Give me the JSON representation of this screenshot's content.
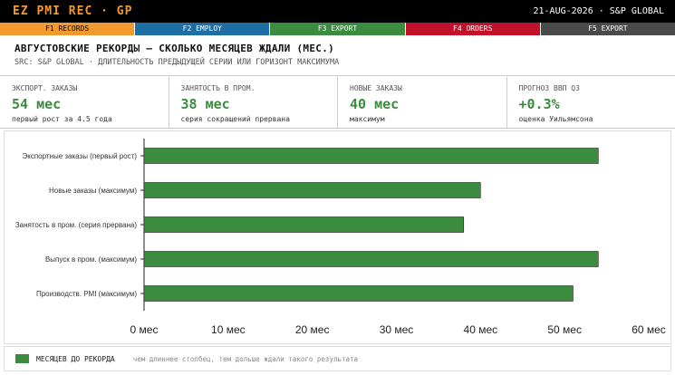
{
  "header": {
    "app_title": "EZ PMI REC · GP",
    "right_text": "21-AUG-2026 · S&P GLOBAL"
  },
  "fkeys": [
    {
      "label": "F1 RECORDS",
      "color": "#f39a2e",
      "text_color": "#000000"
    },
    {
      "label": "F2 EMPLOY",
      "color": "#1c6ea4",
      "text_color": "#ffffff"
    },
    {
      "label": "F3 EXPORT",
      "color": "#3b8c3e",
      "text_color": "#ffffff"
    },
    {
      "label": "F4 ORDERS",
      "color": "#c0102a",
      "text_color": "#ffffff"
    },
    {
      "label": "F5 EXPORT",
      "color": "#4a4a4a",
      "text_color": "#ffffff"
    }
  ],
  "title": "АВГУСТОВСКИЕ РЕКОРДЫ — СКОЛЬКО МЕСЯЦЕВ ЖДАЛИ (МЕС.)",
  "subtitle": "SRC: S&P GLOBAL · ДЛИТЕЛЬНОСТЬ ПРЕДЫДУЩЕЙ СЕРИИ ИЛИ ГОРИЗОНТ МАКСИМУМА",
  "kpis": [
    {
      "label": "ЭКСПОРТ. ЗАКАЗЫ",
      "value": "54 мес",
      "note": "первый рост за 4.5 года"
    },
    {
      "label": "ЗАНЯТОСТЬ В ПРОМ.",
      "value": "38 мес",
      "note": "серия сокращений прервана"
    },
    {
      "label": "НОВЫЕ ЗАКАЗЫ",
      "value": "40 мес",
      "note": "максимум"
    },
    {
      "label": "ПРОГНОЗ ВВП Q3",
      "value": "+0.3%",
      "note": "оценка Уильямсона"
    }
  ],
  "legend": {
    "label": "МЕСЯЦЕВ ДО РЕКОРДА",
    "note": "чем длиннее столбец, тем дольше ждали такого результата"
  },
  "colors": {
    "bar": "#3b8c3e",
    "accent": "#f39a2e"
  },
  "chart_data": {
    "type": "bar",
    "orientation": "horizontal",
    "categories": [
      "Экспортные заказы (первый рост)",
      "Новые заказы (максимум)",
      "Занятость в пром. (серия прервана)",
      "Выпуск в пром. (максимум)",
      "Производств. PMI (максимум)"
    ],
    "values": [
      54,
      40,
      38,
      54,
      51
    ],
    "xlim": [
      0,
      60
    ],
    "xticks": [
      0,
      10,
      20,
      30,
      40,
      50,
      60
    ],
    "tick_labels": [
      "0 мес",
      "10 мес",
      "20 мес",
      "30 мес",
      "40 мес",
      "50 мес",
      "60 мес"
    ],
    "grid": false
  }
}
